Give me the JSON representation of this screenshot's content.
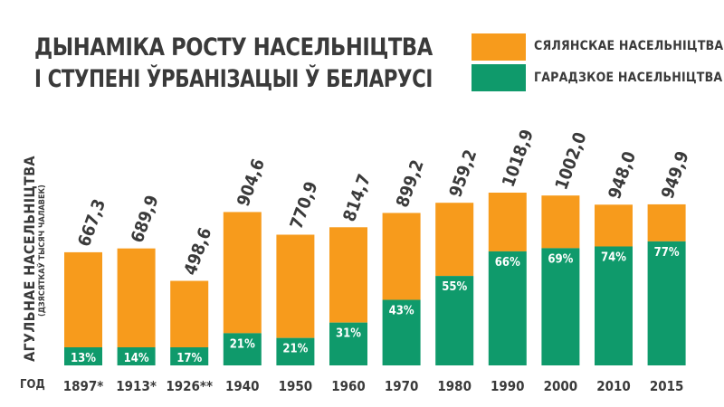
{
  "title_lines": [
    "ДЫНАМІКА РОСТУ НАСЕЛЬНІЦТВА",
    "І СТУПЕНІ ЎРБАНІЗАЦЫІ Ў БЕЛАРУСІ"
  ],
  "legend": {
    "rural_label": "СЯЛЯНСКАЕ НАСЕЛЬНІЦТВА",
    "urban_label": "ГАРАДЗКОЕ НАСЕЛЬНІЦТВА"
  },
  "y_axis": {
    "label": "АГУЛЬНАЕ НАСЕЛЬНІЦТВА",
    "sublabel": "(ДЗЯСЯТКАЎ ТЫСЯЧ ЧАЛАВЕК)"
  },
  "x_axis_title": "ГОД",
  "colors": {
    "rural": "#f79b1c",
    "urban": "#0f9a6b",
    "text": "#3a3a3a",
    "bar_label_text": "#ffffff",
    "background": "#ffffff"
  },
  "chart_data": {
    "type": "bar",
    "stacked": true,
    "categories": [
      "1897*",
      "1913*",
      "1926**",
      "1940",
      "1950",
      "1960",
      "1970",
      "1980",
      "1990",
      "2000",
      "2010",
      "2015"
    ],
    "totals": [
      667.3,
      689.9,
      498.6,
      904.6,
      770.9,
      814.7,
      899.2,
      959.2,
      1018.9,
      1002.0,
      948.0,
      949.9
    ],
    "total_labels": [
      "667,3",
      "689,9",
      "498,6",
      "904,6",
      "770,9",
      "814,7",
      "899,2",
      "959,2",
      "1018,9",
      "1002,0",
      "948,0",
      "949,9"
    ],
    "urban_share_percent": [
      13,
      14,
      17,
      21,
      21,
      31,
      43,
      55,
      66,
      69,
      74,
      77
    ],
    "urban_share_labels": [
      "13%",
      "14%",
      "17%",
      "21%",
      "21%",
      "31%",
      "43%",
      "55%",
      "66%",
      "69%",
      "74%",
      "77%"
    ],
    "series": [
      {
        "name": "ГАРАДЗКОЕ НАСЕЛЬНІЦТВА",
        "share_key": "urban_share_percent"
      },
      {
        "name": "СЯЛЯНСКАЕ НАСЕЛЬНІЦТВА",
        "share_key": "remainder"
      }
    ],
    "grid": false,
    "legend_position": "top-right"
  }
}
